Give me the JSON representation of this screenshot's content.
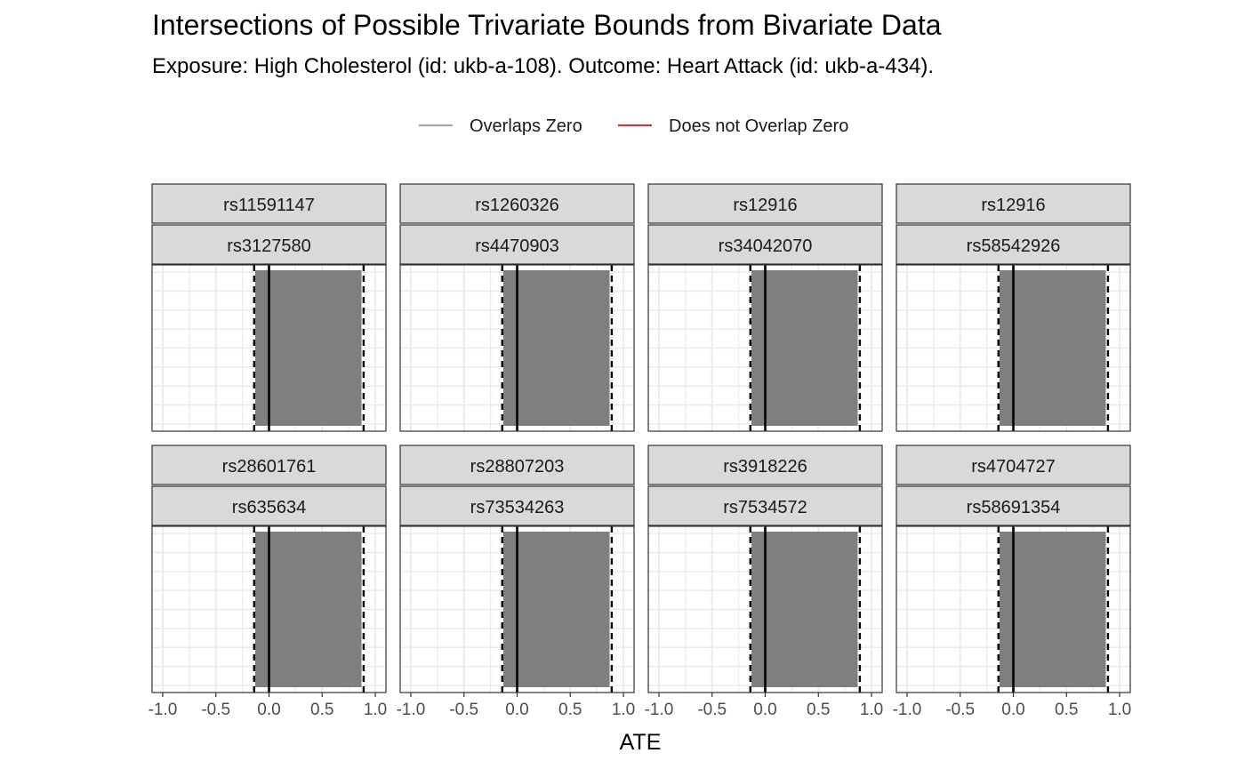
{
  "chart_data": {
    "type": "bar",
    "title": "Intersections of Possible Trivariate Bounds from Bivariate Data",
    "subtitle": "Exposure: High Cholesterol (id: ukb-a-108). Outcome: Heart Attack (id: ukb-a-434).",
    "xlabel": "ATE",
    "ylabel": "",
    "xlim": [
      -1.1,
      1.1
    ],
    "x_ticks": [
      -1.0,
      -0.5,
      0.0,
      0.5,
      1.0
    ],
    "x_tick_labels": [
      "-1.0",
      "-0.5",
      "0.0",
      "0.5",
      "1.0"
    ],
    "grid": true,
    "legend_position": "top",
    "legend": [
      {
        "label": "Overlaps Zero",
        "color": "#a6a6a6"
      },
      {
        "label": "Does not Overlap Zero",
        "color": "#a8454f"
      }
    ],
    "fill_color": "#7f7f7f",
    "reference_lines": {
      "solid": 0.0,
      "dashed": [
        -0.14,
        0.89
      ]
    },
    "panels": [
      {
        "snp1": "rs11591147",
        "snp2": "rs3127580",
        "lower": -0.13,
        "upper": 0.87
      },
      {
        "snp1": "rs1260326",
        "snp2": "rs4470903",
        "lower": -0.13,
        "upper": 0.87
      },
      {
        "snp1": "rs12916",
        "snp2": "rs34042070",
        "lower": -0.13,
        "upper": 0.87
      },
      {
        "snp1": "rs12916",
        "snp2": "rs58542926",
        "lower": -0.13,
        "upper": 0.87
      },
      {
        "snp1": "rs28601761",
        "snp2": "rs635634",
        "lower": -0.13,
        "upper": 0.87
      },
      {
        "snp1": "rs28807203",
        "snp2": "rs73534263",
        "lower": -0.13,
        "upper": 0.87
      },
      {
        "snp1": "rs3918226",
        "snp2": "rs7534572",
        "lower": -0.13,
        "upper": 0.87
      },
      {
        "snp1": "rs4704727",
        "snp2": "rs58691354",
        "lower": -0.13,
        "upper": 0.87
      }
    ]
  }
}
